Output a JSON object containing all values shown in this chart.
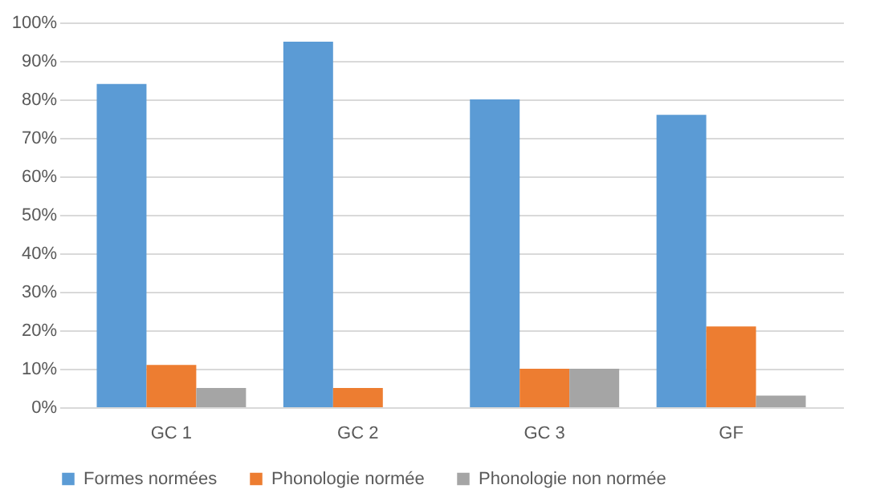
{
  "chart_data": {
    "type": "bar",
    "categories": [
      "GC 1",
      "GC 2",
      "GC 3",
      "GF"
    ],
    "series": [
      {
        "name": "Formes normées",
        "color": "#5b9bd5",
        "values": [
          84,
          95,
          80,
          76
        ]
      },
      {
        "name": "Phonologie normée",
        "color": "#ed7d31",
        "values": [
          11,
          5,
          10,
          21
        ]
      },
      {
        "name": "Phonologie non normée",
        "color": "#a5a5a5",
        "values": [
          5,
          0,
          10,
          3
        ]
      }
    ],
    "ylim": [
      0,
      100
    ],
    "yticks": [
      {
        "value": 0,
        "label": "0%"
      },
      {
        "value": 10,
        "label": "10%"
      },
      {
        "value": 20,
        "label": "20%"
      },
      {
        "value": 30,
        "label": "30%"
      },
      {
        "value": 40,
        "label": "40%"
      },
      {
        "value": 50,
        "label": "50%"
      },
      {
        "value": 60,
        "label": "60%"
      },
      {
        "value": 70,
        "label": "70%"
      },
      {
        "value": 80,
        "label": "80%"
      },
      {
        "value": 90,
        "label": "90%"
      },
      {
        "value": 100,
        "label": "100%"
      }
    ],
    "grid": "y",
    "legend": "bottom"
  }
}
